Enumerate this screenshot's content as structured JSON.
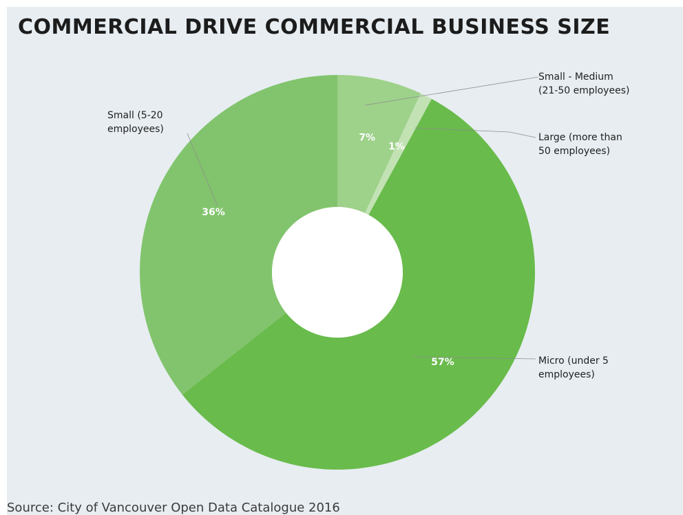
{
  "chart_data": {
    "type": "pie",
    "title": "COMMERCIAL DRIVE COMMERCIAL BUSINESS SIZE",
    "source": "Source: City of Vancouver Open Data Catalogue 2016",
    "slices": [
      {
        "label_lines": [
          "Small - Medium",
          "(21-50 employees)"
        ],
        "value": 7,
        "value_label": "7%",
        "color": "#9ed18a"
      },
      {
        "label_lines": [
          "Large (more than",
          "50 employees)"
        ],
        "value": 1,
        "value_label": "1%",
        "color": "#c2e2b4"
      },
      {
        "label_lines": [
          "Micro (under 5",
          "employees)"
        ],
        "value": 57,
        "value_label": "57%",
        "color": "#69bb4b"
      },
      {
        "label_lines": [
          "Small (5-20",
          "employees)"
        ],
        "value": 36,
        "value_label": "36%",
        "color": "#82c46d"
      }
    ]
  }
}
